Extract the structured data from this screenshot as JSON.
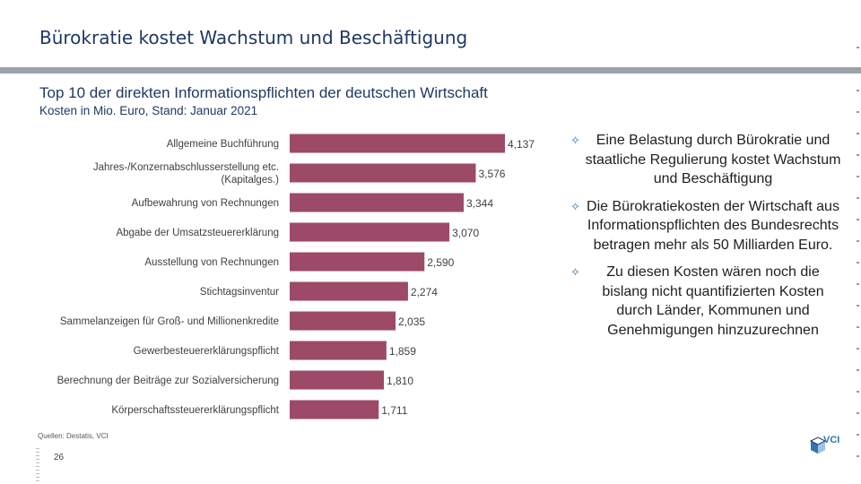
{
  "slide": {
    "title": "Bürokratie kostet Wachstum und Beschäftigung",
    "subtitle": "Top 10 der direkten Informationspflichten der deutschen Wirtschaft",
    "unit_note": "Kosten in Mio. Euro, Stand: Januar 2021",
    "source": "Quellen: Destatis, VCI",
    "page_number": "26",
    "logo_text": "VCI"
  },
  "colors": {
    "bar": "#9c4a67",
    "title": "#1f3864",
    "bullet_icon": "#2e75b6"
  },
  "chart_data": {
    "type": "bar",
    "orientation": "horizontal",
    "title": "Top 10 der direkten Informationspflichten der deutschen Wirtschaft",
    "xlabel": "Kosten in Mio. Euro",
    "ylabel": "",
    "xlim": [
      0,
      4500
    ],
    "grid": false,
    "categories": [
      "Allgemeine Buchführung",
      "Jahres-/Konzernabschlusserstellung etc.\n(Kapitalges.)",
      "Aufbewahrung von Rechnungen",
      "Abgabe der Umsatzsteuererklärung",
      "Ausstellung von Rechnungen",
      "Stichtagsinventur",
      "Sammelanzeigen für Groß- und Millionenkredite",
      "Gewerbesteuererklärungspflicht",
      "Berechnung der Beiträge zur Sozialversicherung",
      "Körperschaftssteuererklärungspflicht"
    ],
    "values": [
      4137,
      3576,
      3344,
      3070,
      2590,
      2274,
      2035,
      1859,
      1810,
      1711
    ],
    "value_labels": [
      "4,137",
      "3,576",
      "3,344",
      "3,070",
      "2,590",
      "2,274",
      "2,035",
      "1,859",
      "1,810",
      "1,711"
    ]
  },
  "bullets": [
    {
      "icon": "diamond-bullet-icon",
      "text": "Eine Belastung durch Bürokratie und staatliche Regulierung kostet Wachstum und Beschäftigung"
    },
    {
      "icon": "diamond-bullet-icon",
      "text": "Die Bürokratiekosten der Wirtschaft aus Informationspflichten des Bundesrechts betragen mehr als 50 Milliarden Euro."
    },
    {
      "icon": "diamond-bullet-icon",
      "text": "Zu diesen Kosten wären noch die bislang nicht quantifizierten Kosten durch Länder, Kommunen und Genehmigungen hinzuzurechnen"
    }
  ]
}
